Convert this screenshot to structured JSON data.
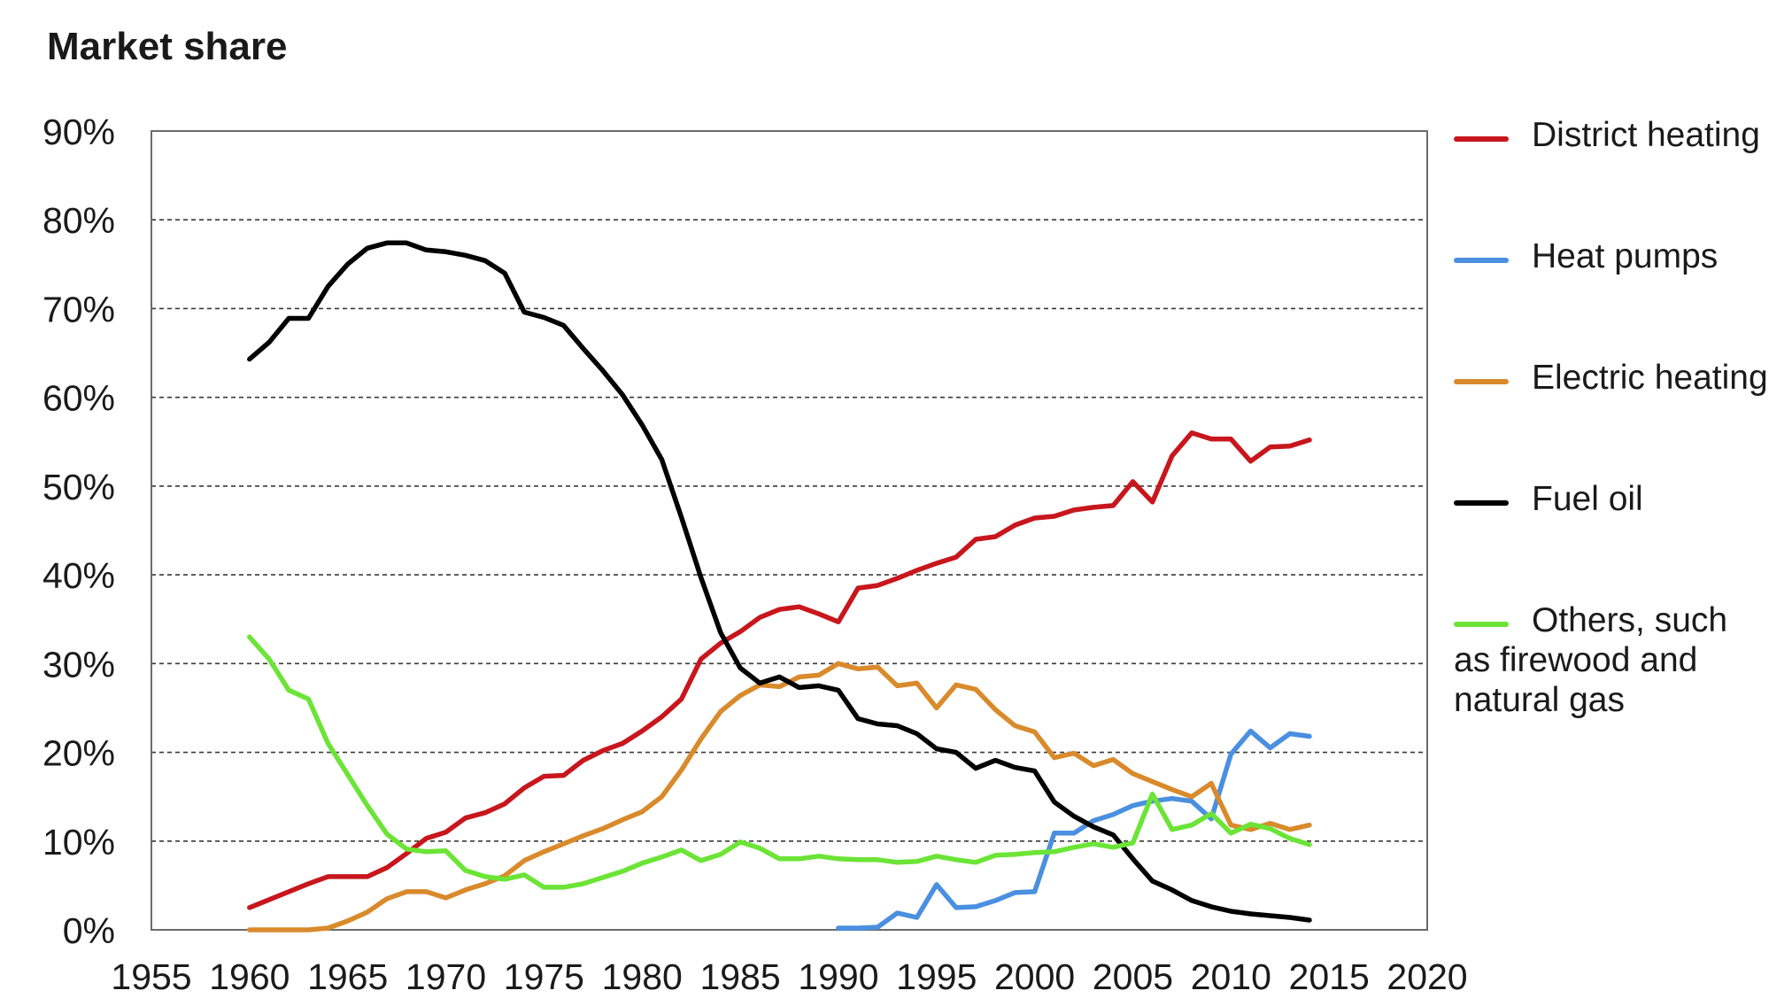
{
  "chart_data": {
    "type": "line",
    "title": "Market share",
    "xlabel": "",
    "ylabel": "",
    "xlim": [
      1955,
      2020
    ],
    "ylim": [
      0,
      90
    ],
    "xticks": [
      1955,
      1960,
      1965,
      1970,
      1975,
      1980,
      1985,
      1990,
      1995,
      2000,
      2005,
      2010,
      2015,
      2020
    ],
    "yticks": [
      0,
      10,
      20,
      30,
      40,
      50,
      60,
      70,
      80,
      90
    ],
    "ytick_labels": [
      "0%",
      "10%",
      "20%",
      "30%",
      "40%",
      "50%",
      "60%",
      "70%",
      "80%",
      "90%"
    ],
    "grid": "horizontal dashed",
    "legend_position": "right",
    "series": [
      {
        "name": "District heating",
        "color": "#c8161d",
        "x": [
          1960,
          1961,
          1962,
          1963,
          1964,
          1965,
          1966,
          1967,
          1968,
          1969,
          1970,
          1971,
          1972,
          1973,
          1974,
          1975,
          1976,
          1977,
          1978,
          1979,
          1980,
          1981,
          1982,
          1983,
          1984,
          1985,
          1986,
          1987,
          1988,
          1989,
          1990,
          1991,
          1992,
          1993,
          1994,
          1995,
          1996,
          1997,
          1998,
          1999,
          2000,
          2001,
          2002,
          2003,
          2004,
          2005,
          2006,
          2007,
          2008,
          2009,
          2010,
          2011,
          2012,
          2013,
          2014
        ],
        "values": [
          2.5,
          3.4,
          4.3,
          5.2,
          6.0,
          6.0,
          6.0,
          7.0,
          8.6,
          10.3,
          11.0,
          12.6,
          13.2,
          14.2,
          16.0,
          17.3,
          17.4,
          19.1,
          20.2,
          21.0,
          22.4,
          24.0,
          26.0,
          30.5,
          32.3,
          33.6,
          35.2,
          36.1,
          36.4,
          35.6,
          34.7,
          38.5,
          38.8,
          39.6,
          40.5,
          41.3,
          42.0,
          44.0,
          44.3,
          45.6,
          46.4,
          46.6,
          47.3,
          47.6,
          47.8,
          50.5,
          48.2,
          53.4,
          56.0,
          55.3,
          55.3,
          52.8,
          54.4,
          54.5,
          55.2
        ]
      },
      {
        "name": "Heat pumps",
        "color": "#4a8fe0",
        "x": [
          1990,
          1991,
          1992,
          1993,
          1994,
          1995,
          1996,
          1997,
          1998,
          1999,
          2000,
          2001,
          2002,
          2003,
          2004,
          2005,
          2006,
          2007,
          2008,
          2009,
          2010,
          2011,
          2012,
          2013,
          2014
        ],
        "values": [
          0.2,
          0.2,
          0.3,
          1.9,
          1.4,
          5.1,
          2.5,
          2.6,
          3.3,
          4.2,
          4.3,
          10.9,
          10.9,
          12.3,
          13.0,
          14.0,
          14.5,
          14.8,
          14.5,
          12.5,
          19.8,
          22.4,
          20.5,
          22.1,
          21.8
        ]
      },
      {
        "name": "Electric heating",
        "color": "#d98a2b",
        "x": [
          1960,
          1961,
          1962,
          1963,
          1964,
          1965,
          1966,
          1967,
          1968,
          1969,
          1970,
          1971,
          1972,
          1973,
          1974,
          1975,
          1976,
          1977,
          1978,
          1979,
          1980,
          1981,
          1982,
          1983,
          1984,
          1985,
          1986,
          1987,
          1988,
          1989,
          1990,
          1991,
          1992,
          1993,
          1994,
          1995,
          1996,
          1997,
          1998,
          1999,
          2000,
          2001,
          2002,
          2003,
          2004,
          2005,
          2006,
          2007,
          2008,
          2009,
          2010,
          2011,
          2012,
          2013,
          2014
        ],
        "values": [
          0,
          0,
          0,
          0,
          0.2,
          1.0,
          2.0,
          3.5,
          4.3,
          4.3,
          3.6,
          4.5,
          5.2,
          6.1,
          7.8,
          8.8,
          9.7,
          10.6,
          11.4,
          12.4,
          13.3,
          15.0,
          18.0,
          21.5,
          24.6,
          26.4,
          27.6,
          27.4,
          28.5,
          28.7,
          30.0,
          29.4,
          29.6,
          27.5,
          27.8,
          25.0,
          27.6,
          27.1,
          24.8,
          23.0,
          22.3,
          19.4,
          19.9,
          18.5,
          19.2,
          17.6,
          16.7,
          15.8,
          15.0,
          16.5,
          11.8,
          11.3,
          12.0,
          11.3,
          11.8
        ]
      },
      {
        "name": "Fuel oil",
        "color": "#000000",
        "x": [
          1960,
          1961,
          1962,
          1963,
          1964,
          1965,
          1966,
          1967,
          1968,
          1969,
          1970,
          1971,
          1972,
          1973,
          1974,
          1975,
          1976,
          1977,
          1978,
          1979,
          1980,
          1981,
          1982,
          1983,
          1984,
          1985,
          1986,
          1987,
          1988,
          1989,
          1990,
          1991,
          1992,
          1993,
          1994,
          1995,
          1996,
          1997,
          1998,
          1999,
          2000,
          2001,
          2002,
          2003,
          2004,
          2005,
          2006,
          2007,
          2008,
          2009,
          2010,
          2011,
          2012,
          2013,
          2014
        ],
        "values": [
          64.3,
          66.2,
          68.9,
          68.9,
          72.5,
          75.0,
          76.8,
          77.4,
          77.4,
          76.6,
          76.4,
          76.0,
          75.4,
          74.0,
          69.6,
          69.0,
          68.1,
          65.5,
          63.0,
          60.3,
          56.9,
          53.0,
          46.5,
          39.7,
          33.5,
          29.5,
          27.8,
          28.5,
          27.3,
          27.5,
          27.0,
          23.8,
          23.2,
          23.0,
          22.1,
          20.4,
          20.0,
          18.2,
          19.1,
          18.3,
          17.9,
          14.4,
          12.8,
          11.6,
          10.7,
          8.0,
          5.5,
          4.5,
          3.3,
          2.6,
          2.1,
          1.8,
          1.6,
          1.4,
          1.1
        ]
      },
      {
        "name": "Others, such as firewood and natural gas",
        "color": "#6be436",
        "x": [
          1960,
          1961,
          1962,
          1963,
          1964,
          1965,
          1966,
          1967,
          1968,
          1969,
          1970,
          1971,
          1972,
          1973,
          1974,
          1975,
          1976,
          1977,
          1978,
          1979,
          1980,
          1981,
          1982,
          1983,
          1984,
          1985,
          1986,
          1987,
          1988,
          1989,
          1990,
          1991,
          1992,
          1993,
          1994,
          1995,
          1996,
          1997,
          1998,
          1999,
          2000,
          2001,
          2002,
          2003,
          2004,
          2005,
          2006,
          2007,
          2008,
          2009,
          2010,
          2011,
          2012,
          2013,
          2014
        ],
        "values": [
          33.0,
          30.5,
          27.0,
          26.0,
          21.0,
          17.5,
          14.0,
          10.8,
          9.1,
          8.8,
          8.9,
          6.7,
          6.0,
          5.7,
          6.2,
          4.8,
          4.8,
          5.2,
          5.9,
          6.6,
          7.5,
          8.2,
          9.0,
          7.8,
          8.5,
          9.9,
          9.2,
          8.0,
          8.0,
          8.3,
          8.0,
          7.9,
          7.9,
          7.6,
          7.7,
          8.3,
          7.9,
          7.6,
          8.4,
          8.5,
          8.7,
          8.8,
          9.3,
          9.7,
          9.3,
          9.8,
          15.3,
          11.3,
          11.8,
          13.1,
          10.9,
          11.9,
          11.4,
          10.3,
          9.6
        ]
      }
    ]
  }
}
